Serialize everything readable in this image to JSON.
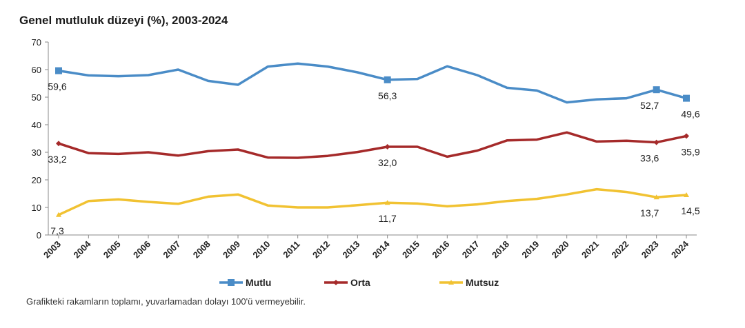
{
  "page": {
    "title": "Genel mutluluk düzeyi (%), 2003-2024",
    "note": "Grafikteki rakamların toplamı, yuvarlamadan dolayı 100'ü vermeyebilir."
  },
  "chart_data": {
    "type": "line",
    "title": "Genel mutluluk düzeyi (%), 2003-2024",
    "xlabel": "",
    "ylabel": "",
    "ylim": [
      0,
      70
    ],
    "yticks": [
      0,
      10,
      20,
      30,
      40,
      50,
      60,
      70
    ],
    "grid": false,
    "legend": "bottom",
    "categories": [
      "2003",
      "2004",
      "2005",
      "2006",
      "2007",
      "2008",
      "2009",
      "2010",
      "2011",
      "2012",
      "2013",
      "2014",
      "2015",
      "2016",
      "2017",
      "2018",
      "2019",
      "2020",
      "2021",
      "2022",
      "2023",
      "2024"
    ],
    "series": [
      {
        "name": "Mutlu",
        "color": "#4a8cc7",
        "marker": "square",
        "values": [
          59.6,
          57.9,
          57.6,
          58.0,
          60.0,
          55.9,
          54.5,
          61.1,
          62.2,
          61.1,
          59.0,
          56.3,
          56.6,
          61.2,
          58.0,
          53.4,
          52.4,
          48.1,
          49.2,
          49.6,
          52.7,
          49.6
        ],
        "labels": [
          {
            "index": 0,
            "text": "59,6"
          },
          {
            "index": 11,
            "text": "56,3"
          },
          {
            "index": 20,
            "text": "52,7"
          },
          {
            "index": 21,
            "text": "49,6"
          }
        ]
      },
      {
        "name": "Orta",
        "color": "#a52a2a",
        "marker": "diamond",
        "values": [
          33.2,
          29.7,
          29.4,
          30.0,
          28.8,
          30.4,
          31.0,
          28.1,
          28.0,
          28.7,
          30.1,
          32.0,
          32.0,
          28.4,
          30.6,
          34.3,
          34.6,
          37.2,
          33.9,
          34.2,
          33.6,
          35.9
        ],
        "labels": [
          {
            "index": 0,
            "text": "33,2"
          },
          {
            "index": 11,
            "text": "32,0"
          },
          {
            "index": 20,
            "text": "33,6"
          },
          {
            "index": 21,
            "text": "35,9"
          }
        ]
      },
      {
        "name": "Mutsuz",
        "color": "#f1c232",
        "marker": "triangle",
        "values": [
          7.3,
          12.3,
          12.9,
          12.0,
          11.3,
          13.9,
          14.7,
          10.7,
          10.0,
          10.0,
          10.8,
          11.7,
          11.4,
          10.4,
          11.1,
          12.3,
          13.1,
          14.7,
          16.6,
          15.6,
          13.7,
          14.5
        ],
        "labels": [
          {
            "index": 0,
            "text": "7,3"
          },
          {
            "index": 11,
            "text": "11,7"
          },
          {
            "index": 20,
            "text": "13,7"
          },
          {
            "index": 21,
            "text": "14,5"
          }
        ]
      }
    ]
  }
}
